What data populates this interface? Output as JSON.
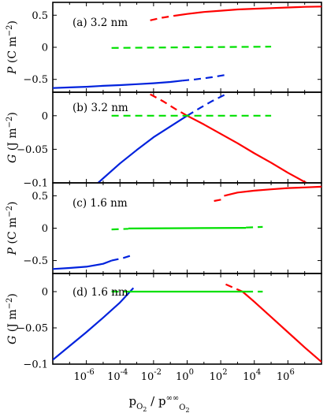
{
  "colors": {
    "red": "#ff0000",
    "green": "#00e000",
    "blue": "#0022dd"
  },
  "xlabel": {
    "main": "p",
    "sub1": "O",
    "sub1b": "2",
    "slash": " / p",
    "sup": "∞∞",
    "sub2": "O",
    "sub2b": "2"
  },
  "x_ticks": [
    {
      "exp": "-6",
      "base": "10"
    },
    {
      "exp": "-4",
      "base": "10"
    },
    {
      "exp": "-2",
      "base": "10"
    },
    {
      "exp": "0",
      "base": "10"
    },
    {
      "exp": "2",
      "base": "10"
    },
    {
      "exp": "4",
      "base": "10"
    },
    {
      "exp": "6",
      "base": "10"
    }
  ],
  "chart_data": [
    {
      "type": "line",
      "panel_label": "(a) 3.2 nm",
      "ylabel": {
        "italic": "P",
        "unit": " (C m",
        "exp": "−2",
        "close": ")"
      },
      "xscale": "log",
      "xlim": [
        -8,
        8
      ],
      "ylim": [
        -0.7,
        0.7
      ],
      "yticks": [
        0.5,
        0,
        -0.5
      ],
      "ytick_labels": [
        "0.5",
        "0",
        "−0.5"
      ],
      "series": [
        {
          "color": "red",
          "style": "dashed",
          "x": [
            -2.2,
            -1.5,
            -0.8
          ],
          "y": [
            0.42,
            0.46,
            0.49
          ]
        },
        {
          "color": "red",
          "style": "solid",
          "x": [
            -0.8,
            0,
            1,
            2,
            3,
            4,
            5,
            6,
            7,
            8
          ],
          "y": [
            0.49,
            0.52,
            0.55,
            0.57,
            0.59,
            0.6,
            0.61,
            0.62,
            0.63,
            0.635
          ]
        },
        {
          "color": "green",
          "style": "dashed",
          "x": [
            -4.5,
            0,
            5
          ],
          "y": [
            -0.01,
            0,
            0.01
          ]
        },
        {
          "color": "blue",
          "style": "solid",
          "x": [
            -8,
            -7,
            -6,
            -5,
            -4,
            -3,
            -2,
            -1,
            -0.3
          ],
          "y": [
            -0.635,
            -0.625,
            -0.615,
            -0.6,
            -0.59,
            -0.575,
            -0.56,
            -0.54,
            -0.52
          ]
        },
        {
          "color": "blue",
          "style": "dashed",
          "x": [
            -0.3,
            0.5,
            1.5,
            2.3
          ],
          "y": [
            -0.52,
            -0.5,
            -0.465,
            -0.43
          ]
        }
      ]
    },
    {
      "type": "line",
      "panel_label": "(b) 3.2 nm",
      "ylabel": {
        "italic": "G",
        "unit": " (J m",
        "exp": "−2",
        "close": ")"
      },
      "xscale": "log",
      "xlim": [
        -8,
        8
      ],
      "ylim": [
        -0.1,
        0.035
      ],
      "yticks": [
        0,
        -0.05,
        -0.1
      ],
      "ytick_labels": [
        "0",
        "−0.05",
        "−0.1"
      ],
      "series": [
        {
          "color": "blue",
          "style": "solid",
          "x": [
            -5.3,
            -4,
            -3,
            -2,
            -1,
            0
          ],
          "y": [
            -0.1,
            -0.071,
            -0.051,
            -0.032,
            -0.016,
            0
          ]
        },
        {
          "color": "blue",
          "style": "dashed",
          "x": [
            0,
            0.8,
            1.5,
            2.3
          ],
          "y": [
            0,
            0.012,
            0.022,
            0.032
          ]
        },
        {
          "color": "red",
          "style": "solid",
          "x": [
            0,
            1,
            2,
            3,
            4,
            5,
            6,
            7.1
          ],
          "y": [
            0,
            -0.013,
            -0.027,
            -0.041,
            -0.056,
            -0.07,
            -0.085,
            -0.1
          ]
        },
        {
          "color": "red",
          "style": "dashed",
          "x": [
            -2.2,
            -1.4,
            -0.7,
            0
          ],
          "y": [
            0.032,
            0.021,
            0.01,
            0
          ]
        },
        {
          "color": "green",
          "style": "dashed",
          "x": [
            -4.5,
            0,
            5
          ],
          "y": [
            0,
            0,
            0
          ]
        }
      ]
    },
    {
      "type": "line",
      "panel_label": "(c) 1.6 nm",
      "ylabel": {
        "italic": "P",
        "unit": " (C m",
        "exp": "−2",
        "close": ")"
      },
      "xscale": "log",
      "xlim": [
        -8,
        8
      ],
      "ylim": [
        -0.7,
        0.7
      ],
      "yticks": [
        0.5,
        0,
        -0.5
      ],
      "ytick_labels": [
        "0.5",
        "0",
        "−0.5"
      ],
      "series": [
        {
          "color": "red",
          "style": "dashed",
          "x": [
            1.6,
            2.2
          ],
          "y": [
            0.42,
            0.45
          ]
        },
        {
          "color": "red",
          "style": "solid",
          "x": [
            2.2,
            3,
            4,
            5,
            6,
            7,
            8
          ],
          "y": [
            0.5,
            0.55,
            0.58,
            0.6,
            0.62,
            0.63,
            0.64
          ]
        },
        {
          "color": "green",
          "style": "dashed",
          "x": [
            -4.5,
            -3.5
          ],
          "y": [
            -0.02,
            -0.01
          ]
        },
        {
          "color": "green",
          "style": "solid",
          "x": [
            -3.5,
            0,
            3.5
          ],
          "y": [
            -0.005,
            0,
            0.005
          ]
        },
        {
          "color": "green",
          "style": "dashed",
          "x": [
            3.5,
            4.5
          ],
          "y": [
            0.01,
            0.02
          ]
        },
        {
          "color": "blue",
          "style": "solid",
          "x": [
            -8,
            -7,
            -6,
            -5,
            -4.5
          ],
          "y": [
            -0.63,
            -0.615,
            -0.595,
            -0.55,
            -0.5
          ]
        },
        {
          "color": "blue",
          "style": "dashed",
          "x": [
            -4.5,
            -3.8,
            -3.3
          ],
          "y": [
            -0.5,
            -0.46,
            -0.42
          ]
        }
      ]
    },
    {
      "type": "line",
      "panel_label": "(d) 1.6 nm",
      "ylabel": {
        "italic": "G",
        "unit": " (J m",
        "exp": "−2",
        "close": ")"
      },
      "xscale": "log",
      "xlim": [
        -8,
        8
      ],
      "ylim": [
        -0.1,
        0.025
      ],
      "yticks": [
        0,
        -0.05,
        -0.1
      ],
      "ytick_labels": [
        "0",
        "−0.05",
        "−0.1"
      ],
      "series": [
        {
          "color": "blue",
          "style": "solid",
          "x": [
            -8,
            -7,
            -6,
            -5,
            -4,
            -3.4
          ],
          "y": [
            -0.094,
            -0.075,
            -0.056,
            -0.036,
            -0.015,
            0
          ]
        },
        {
          "color": "blue",
          "style": "dashed",
          "x": [
            -3.4,
            -3.2
          ],
          "y": [
            0,
            0.005
          ]
        },
        {
          "color": "red",
          "style": "solid",
          "x": [
            3.3,
            4,
            5,
            6,
            7,
            8
          ],
          "y": [
            0,
            -0.014,
            -0.035,
            -0.056,
            -0.077,
            -0.097
          ]
        },
        {
          "color": "red",
          "style": "dashed",
          "x": [
            2.3,
            2.8,
            3.3
          ],
          "y": [
            0.01,
            0.005,
            0
          ]
        },
        {
          "color": "green",
          "style": "dashed",
          "x": [
            -4.5,
            -3.5
          ],
          "y": [
            0,
            0
          ]
        },
        {
          "color": "green",
          "style": "solid",
          "x": [
            -3.5,
            0,
            3.5
          ],
          "y": [
            0,
            0,
            0
          ]
        },
        {
          "color": "green",
          "style": "dashed",
          "x": [
            3.5,
            4.5
          ],
          "y": [
            0,
            0
          ]
        }
      ]
    }
  ]
}
